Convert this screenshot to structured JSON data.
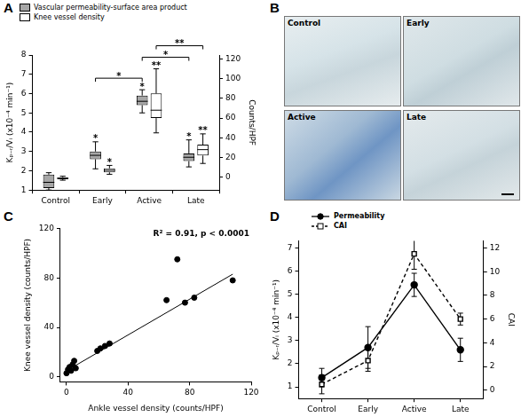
{
  "chart_data": [
    {
      "panel": "A",
      "type": "box",
      "categories": [
        "Control",
        "Early",
        "Active",
        "Late"
      ],
      "ylabel": "Kₚ₋ᵣ/Vᵢ (x10⁻⁴ min⁻¹)",
      "y2label": "Counts/HPF",
      "ylim": [
        1,
        8
      ],
      "yticks": [
        1,
        2,
        3,
        4,
        5,
        6,
        7,
        8
      ],
      "y2lim": [
        -13,
        124
      ],
      "y2ticks": [
        0,
        20,
        40,
        60,
        80,
        100,
        120
      ],
      "grid": false,
      "legend": "top",
      "series": [
        {
          "name": "Vascular permeability-surface area product",
          "color": "#a6a6a6",
          "min": [
            1.0,
            2.1,
            5.0,
            2.2
          ],
          "q1": [
            1.1,
            2.6,
            5.4,
            2.5
          ],
          "median": [
            1.4,
            2.8,
            5.6,
            2.7
          ],
          "q3": [
            1.8,
            3.0,
            5.9,
            2.9
          ],
          "max": [
            1.9,
            3.5,
            6.2,
            3.6
          ],
          "significance": [
            null,
            "*",
            "*",
            "*"
          ]
        },
        {
          "name": "Knee vessel density",
          "color": "#ffffff",
          "axis": "y2",
          "min": [
            -3,
            3,
            45,
            14
          ],
          "q1": [
            -2,
            5,
            60,
            22
          ],
          "median": [
            -1,
            7,
            68,
            28
          ],
          "q3": [
            0,
            9,
            85,
            33
          ],
          "max": [
            1,
            12,
            110,
            44
          ],
          "significance": [
            null,
            "*",
            "**",
            "**"
          ]
        }
      ],
      "comparisons": [
        {
          "categories": [
            "Early",
            "Active"
          ],
          "series": "Vascular permeability-surface area product",
          "label": "*"
        },
        {
          "categories": [
            "Active",
            "Late"
          ],
          "series": "Vascular permeability-surface area product",
          "label": "*"
        },
        {
          "categories": [
            "Active",
            "Late"
          ],
          "series": "Knee vessel density",
          "label": "**"
        }
      ]
    },
    {
      "panel": "C",
      "type": "scatter",
      "xlabel": "Ankle vessel density (counts/HPF)",
      "ylabel": "Knee vessel density (counts/HPF)",
      "annotation": "R² = 0.91, p < 0.0001",
      "x": [
        0,
        1,
        2,
        3,
        4,
        5,
        6,
        20,
        22,
        25,
        28,
        65,
        72,
        77,
        83,
        108
      ],
      "values": [
        3,
        6,
        8,
        5,
        10,
        13,
        7,
        21,
        23,
        25,
        27,
        62,
        95,
        60,
        64,
        78
      ],
      "color": "#000000",
      "marker": "circle",
      "trend": {
        "x": [
          0,
          108
        ],
        "values": [
          5,
          83
        ]
      },
      "xlim": [
        -4,
        120
      ],
      "xticks": [
        0,
        40,
        80,
        120
      ],
      "ylim": [
        -4,
        120
      ],
      "yticks": [
        0,
        40,
        80,
        120
      ],
      "grid": false
    },
    {
      "panel": "D",
      "type": "line",
      "categories": [
        "Control",
        "Early",
        "Active",
        "Late"
      ],
      "ylabel": "Kₚ₋ᵣ/Vᵢ (x10⁻⁴ min⁻¹)",
      "y2label": "CAI",
      "ylim": [
        0.5,
        7.3
      ],
      "yticks": [
        1,
        2,
        3,
        4,
        5,
        6,
        7
      ],
      "y2lim": [
        -0.7,
        12.6
      ],
      "y2ticks": [
        0,
        2,
        4,
        6,
        8,
        10,
        12
      ],
      "grid": false,
      "legend": "top",
      "series": [
        {
          "name": "Permeability",
          "color": "#000000",
          "marker": "circle",
          "line_style": "solid",
          "values": [
            1.4,
            2.7,
            5.4,
            2.6
          ],
          "errors": [
            0.4,
            0.9,
            0.5,
            0.5
          ]
        },
        {
          "name": "CAI",
          "color": "#000000",
          "marker": "open-square",
          "line_style": "dashed",
          "axis": "y2",
          "values": [
            0.5,
            2.5,
            11.5,
            6.0
          ],
          "errors": [
            0.8,
            0.9,
            1.3,
            0.5
          ]
        }
      ]
    }
  ],
  "images": {
    "panel": "B",
    "labels": [
      "Control",
      "Early",
      "Active",
      "Late"
    ]
  }
}
